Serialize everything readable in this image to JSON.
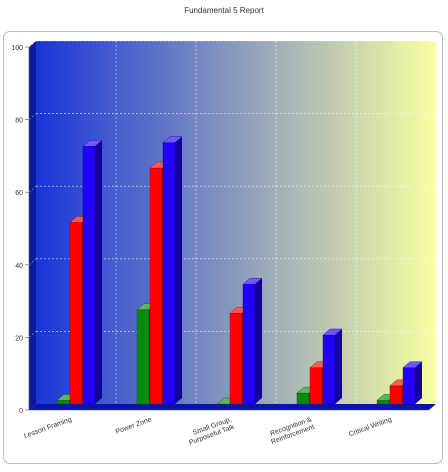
{
  "chart_data": {
    "type": "bar",
    "title": "Fundamental 5 Report",
    "categories": [
      "Lesson Framing",
      "Power Zone",
      "Small Group, Purposeful Talk",
      "Recognition & Reinforcement",
      "Critical Writing"
    ],
    "category_label_lines": [
      [
        "Lesson Framing"
      ],
      [
        "Power Zone"
      ],
      [
        "Small Group,",
        "Purposeful Talk"
      ],
      [
        "Recognition &",
        "Reinforcement"
      ],
      [
        "Critical Writing"
      ]
    ],
    "series": [
      {
        "color": "#0a8a0a",
        "values": [
          1,
          26,
          0,
          3,
          1
        ]
      },
      {
        "color": "#ff0000",
        "values": [
          50,
          65,
          25,
          10,
          5
        ]
      },
      {
        "color": "#2200ff",
        "values": [
          71,
          72,
          33,
          19,
          10
        ]
      }
    ],
    "ylim": [
      0,
      100
    ],
    "yticks": [
      "0",
      "20",
      "40",
      "60",
      "80",
      "100"
    ],
    "grid": true,
    "background_gradient": [
      "#1a35d8",
      "#faffa2"
    ]
  }
}
